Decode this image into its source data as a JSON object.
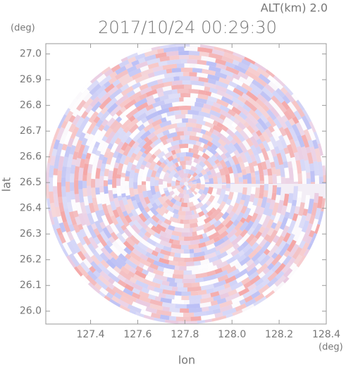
{
  "chart_data": {
    "type": "ppi",
    "title": "2017/10/24 00:29:30",
    "annotation": "ALT(km) 2.0",
    "x_unit": "(deg)",
    "y_unit": "(deg)",
    "xlabel": "lon",
    "ylabel": "lat",
    "xlim": [
      127.21,
      128.4
    ],
    "ylim": [
      25.95,
      27.04
    ],
    "xticks": [
      127.4,
      127.6,
      127.8,
      {
        "value": 128,
        "label": "128.0"
      },
      128.2,
      128.4
    ],
    "yticks": [
      {
        "value": 26,
        "label": "26.0"
      },
      26.1,
      26.2,
      26.3,
      26.4,
      26.5,
      26.6,
      26.7,
      26.8,
      26.9,
      {
        "value": 27,
        "label": "27.0"
      }
    ]
  }
}
